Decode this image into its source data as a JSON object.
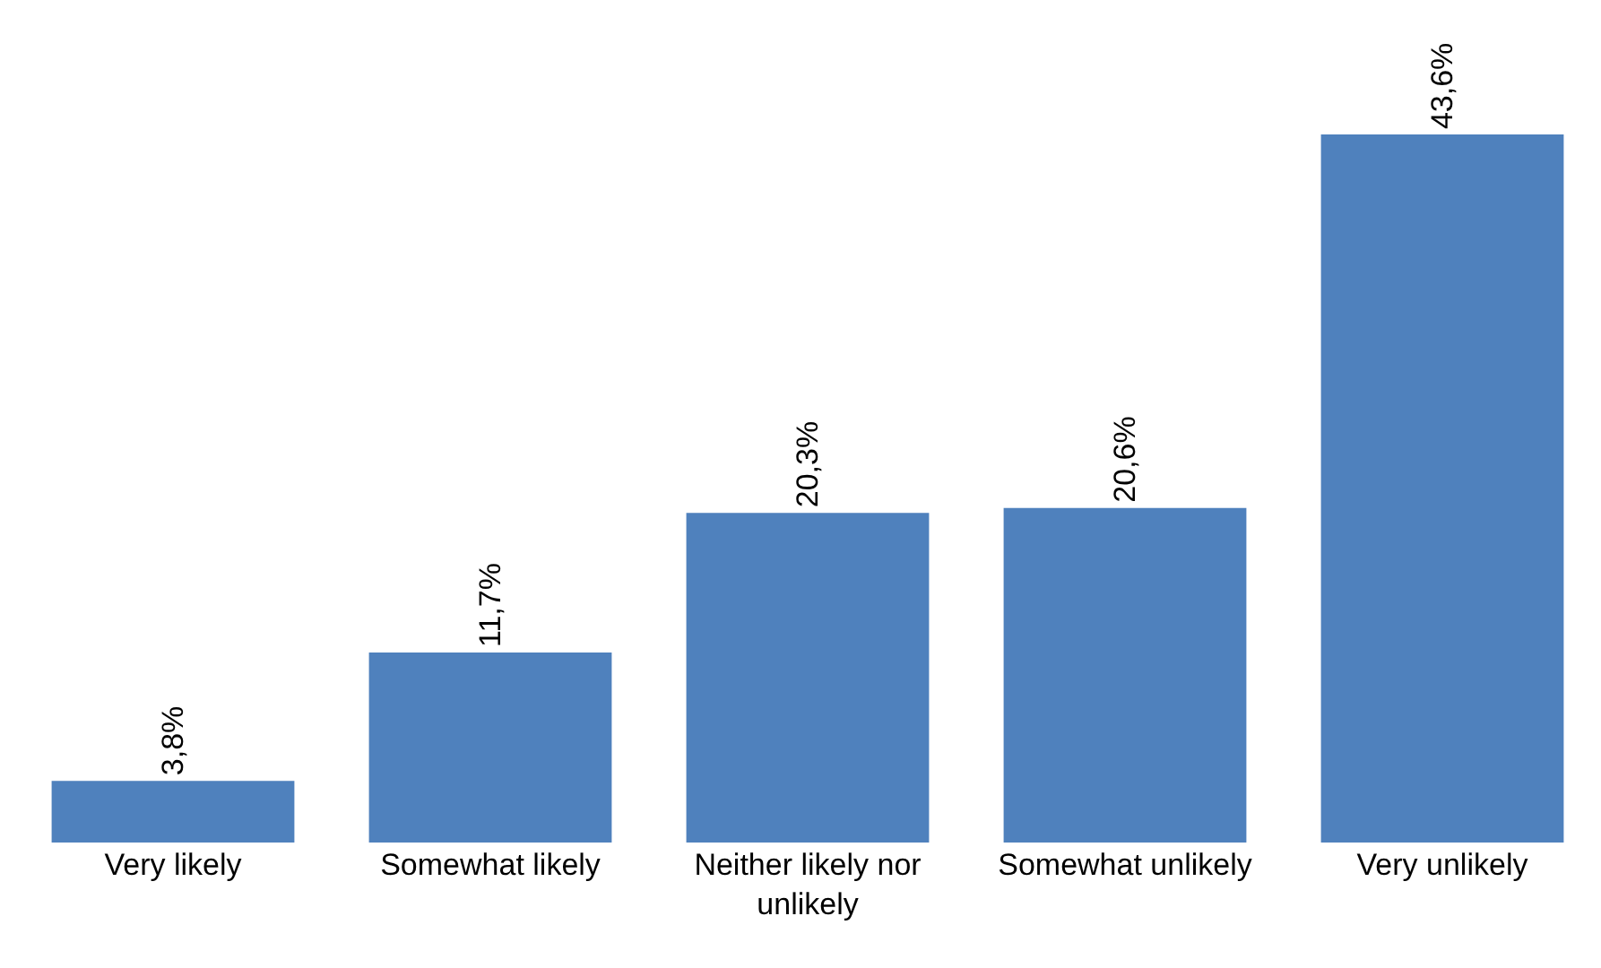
{
  "chart_data": {
    "type": "bar",
    "categories": [
      "Very likely",
      "Somewhat likely",
      "Neither likely nor unlikely",
      "Somewhat unlikely",
      "Very unlikely"
    ],
    "values": [
      3.8,
      11.7,
      20.3,
      20.6,
      43.6
    ],
    "value_labels": [
      "3,8%",
      "11,7%",
      "20,3%",
      "20,6%",
      "43,6%"
    ],
    "color": "#4f81bd",
    "grid": false,
    "legend": false
  }
}
